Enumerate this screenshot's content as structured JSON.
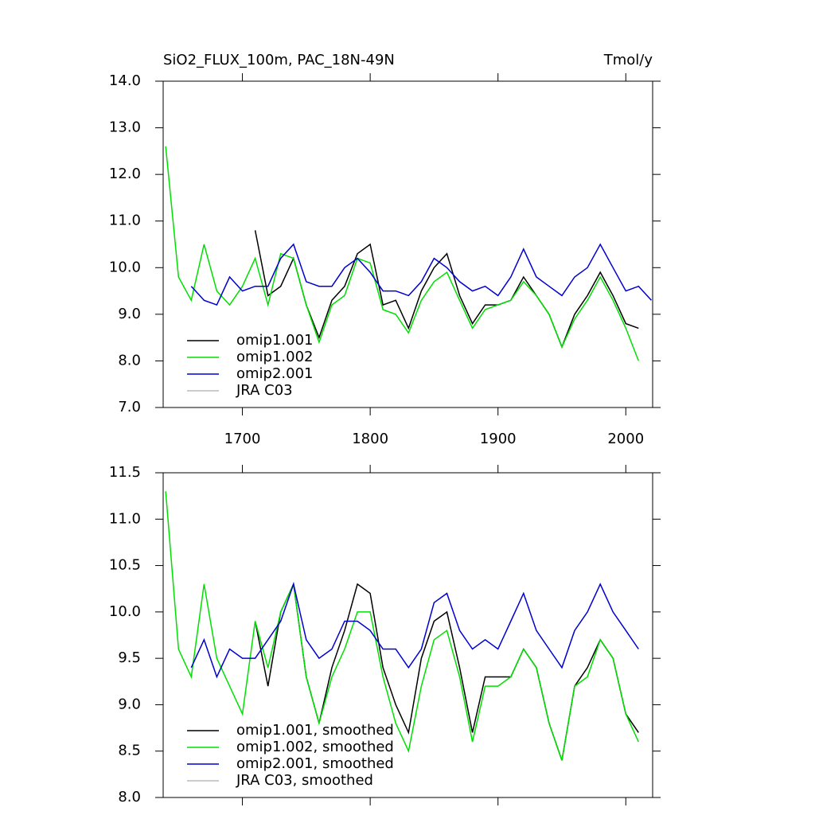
{
  "chart_data": [
    {
      "type": "line",
      "title": "SiO2_FLUX_100m, PAC_18N-49N",
      "units": "Tmol/y",
      "x": [
        1640,
        1650,
        1660,
        1670,
        1680,
        1690,
        1700,
        1710,
        1720,
        1730,
        1740,
        1750,
        1760,
        1770,
        1780,
        1790,
        1800,
        1810,
        1820,
        1830,
        1840,
        1850,
        1860,
        1870,
        1880,
        1890,
        1900,
        1910,
        1920,
        1930,
        1940,
        1950,
        1960,
        1970,
        1980,
        1990,
        2000,
        2010,
        2020
      ],
      "xlim": [
        1638,
        2021
      ],
      "xticks": [
        1700,
        1800,
        1900,
        2000
      ],
      "ylim": [
        7,
        14
      ],
      "yticks": [
        {
          "value": 7,
          "label": "7.0"
        },
        {
          "value": 8,
          "label": "8.0"
        },
        {
          "value": 9,
          "label": "9.0"
        },
        {
          "value": 10,
          "label": "10.0"
        },
        {
          "value": 11,
          "label": "11.0"
        },
        {
          "value": 12,
          "label": "12.0"
        },
        {
          "value": 13,
          "label": "13.0"
        },
        {
          "value": 14,
          "label": "14.0"
        }
      ],
      "legend": "lower left",
      "series": [
        {
          "name": "omip1.001",
          "color": "#000000",
          "values": [
            null,
            null,
            null,
            null,
            null,
            null,
            null,
            10.8,
            9.4,
            9.6,
            10.2,
            9.2,
            8.5,
            9.3,
            9.6,
            10.3,
            10.5,
            9.2,
            9.3,
            8.7,
            9.5,
            10.0,
            10.3,
            9.4,
            8.8,
            9.2,
            9.2,
            9.3,
            9.8,
            9.4,
            9.0,
            8.3,
            9.0,
            9.4,
            9.9,
            9.4,
            8.8,
            8.7,
            null
          ]
        },
        {
          "name": "omip1.002",
          "color": "#00e000",
          "values": [
            12.6,
            9.8,
            9.3,
            10.5,
            9.5,
            9.2,
            9.6,
            10.2,
            9.2,
            10.3,
            10.2,
            9.2,
            8.4,
            9.2,
            9.4,
            10.2,
            10.1,
            9.1,
            9.0,
            8.6,
            9.3,
            9.7,
            9.9,
            9.3,
            8.7,
            9.1,
            9.2,
            9.3,
            9.7,
            9.4,
            9.0,
            8.3,
            8.9,
            9.3,
            9.8,
            9.3,
            8.7,
            8.0,
            null
          ]
        },
        {
          "name": "omip2.001",
          "color": "#0000d0",
          "values": [
            null,
            null,
            9.6,
            9.3,
            9.2,
            9.8,
            9.5,
            9.6,
            9.6,
            10.2,
            10.5,
            9.7,
            9.6,
            9.6,
            10.0,
            10.2,
            9.9,
            9.5,
            9.5,
            9.4,
            9.7,
            10.2,
            10.0,
            9.7,
            9.5,
            9.6,
            9.4,
            9.8,
            10.4,
            9.8,
            9.6,
            9.4,
            9.8,
            10.0,
            10.5,
            10.0,
            9.5,
            9.6,
            9.3
          ]
        },
        {
          "name": "JRA C03",
          "color": "#bbbbbb",
          "values": [
            null,
            null,
            null,
            null,
            null,
            null,
            null,
            null,
            null,
            null,
            null,
            null,
            null,
            null,
            null,
            null,
            null,
            null,
            null,
            null,
            null,
            null,
            null,
            null,
            null,
            null,
            null,
            null,
            null,
            null,
            null,
            null,
            null,
            null,
            null,
            null,
            null,
            null,
            null
          ]
        }
      ]
    },
    {
      "type": "line",
      "x": [
        1640,
        1650,
        1660,
        1670,
        1680,
        1690,
        1700,
        1710,
        1720,
        1730,
        1740,
        1750,
        1760,
        1770,
        1780,
        1790,
        1800,
        1810,
        1820,
        1830,
        1840,
        1850,
        1860,
        1870,
        1880,
        1890,
        1900,
        1910,
        1920,
        1930,
        1940,
        1950,
        1960,
        1970,
        1980,
        1990,
        2000,
        2010,
        2020
      ],
      "xlim": [
        1638,
        2021
      ],
      "ylim": [
        8,
        11.5
      ],
      "yticks": [
        {
          "value": 8,
          "label": "8.0"
        },
        8.5,
        {
          "value": 9,
          "label": "9.0"
        },
        9.5,
        {
          "value": 10,
          "label": "10.0"
        },
        10.5,
        {
          "value": 11,
          "label": "11.0"
        },
        11.5
      ],
      "legend": "lower left",
      "series": [
        {
          "name": "omip1.001, smoothed",
          "color": "#000000",
          "values": [
            null,
            null,
            null,
            null,
            null,
            null,
            null,
            9.9,
            9.2,
            10.0,
            10.3,
            9.3,
            8.8,
            9.4,
            9.8,
            10.3,
            10.2,
            9.4,
            9.0,
            8.7,
            9.5,
            9.9,
            10.0,
            9.4,
            8.7,
            9.3,
            9.3,
            9.3,
            9.6,
            9.4,
            8.8,
            8.4,
            9.2,
            9.4,
            9.7,
            9.5,
            8.9,
            8.7,
            null
          ]
        },
        {
          "name": "omip1.002, smoothed",
          "color": "#00e000",
          "values": [
            11.3,
            9.6,
            9.3,
            10.3,
            9.5,
            9.2,
            8.9,
            9.9,
            9.4,
            10.0,
            10.3,
            9.3,
            8.8,
            9.3,
            9.6,
            10.0,
            10.0,
            9.3,
            8.8,
            8.5,
            9.2,
            9.7,
            9.8,
            9.3,
            8.6,
            9.2,
            9.2,
            9.3,
            9.6,
            9.4,
            8.8,
            8.4,
            9.2,
            9.3,
            9.7,
            9.5,
            8.9,
            8.6,
            null
          ]
        },
        {
          "name": "omip2.001, smoothed",
          "color": "#0000d0",
          "values": [
            null,
            null,
            9.4,
            9.7,
            9.3,
            9.6,
            9.5,
            9.5,
            9.7,
            9.9,
            10.3,
            9.7,
            9.5,
            9.6,
            9.9,
            9.9,
            9.8,
            9.6,
            9.6,
            9.4,
            9.6,
            10.1,
            10.2,
            9.8,
            9.6,
            9.7,
            9.6,
            9.9,
            10.2,
            9.8,
            9.6,
            9.4,
            9.8,
            10.0,
            10.3,
            10.0,
            9.8,
            9.6,
            null
          ]
        },
        {
          "name": "JRA C03, smoothed",
          "color": "#bbbbbb",
          "values": [
            null,
            null,
            null,
            null,
            null,
            null,
            null,
            null,
            null,
            null,
            null,
            null,
            null,
            null,
            null,
            null,
            null,
            null,
            null,
            null,
            null,
            null,
            null,
            null,
            null,
            null,
            null,
            null,
            null,
            null,
            null,
            null,
            null,
            null,
            null,
            null,
            null,
            null,
            null
          ]
        }
      ]
    }
  ]
}
